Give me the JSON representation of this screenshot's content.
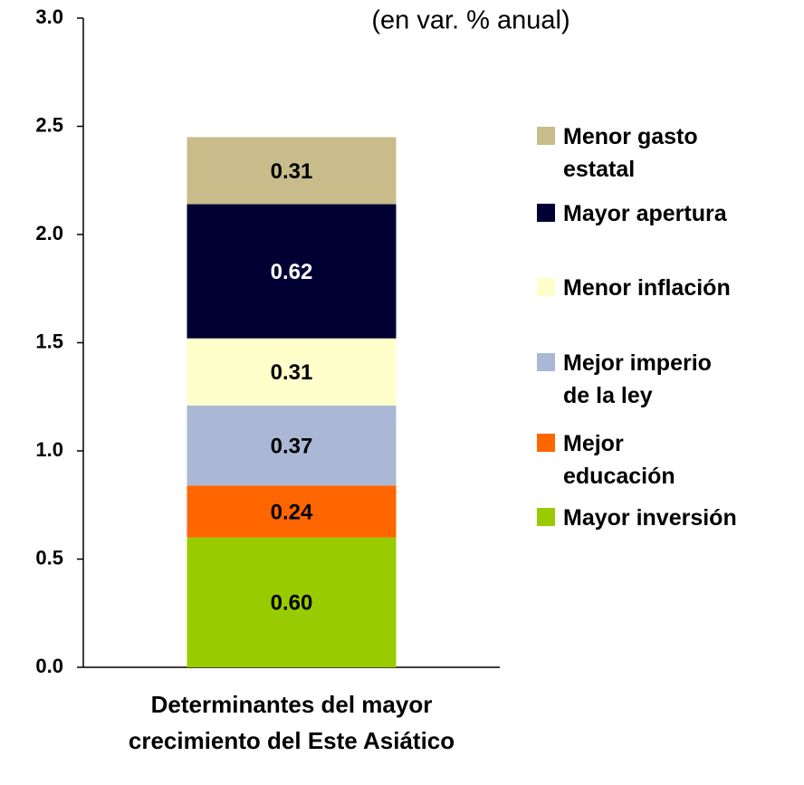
{
  "chart_data": {
    "type": "stacked_bar",
    "title": "(en var. % anual)",
    "categories": [
      "Determinantes del mayor crecimiento del Este Asiático"
    ],
    "series": [
      {
        "name": "Mayor inversión",
        "color": "#99cc00",
        "values": [
          0.6
        ],
        "value_labels": [
          "0.60"
        ]
      },
      {
        "name": "Mejor\neducación",
        "color": "#ff6600",
        "values": [
          0.24
        ]
      },
      {
        "name": "Mejor imperio\nde la ley",
        "color": "#aab8d6",
        "values": [
          0.37
        ]
      },
      {
        "name": "Menor inflación",
        "color": "#ffffcc",
        "values": [
          0.31
        ]
      },
      {
        "name": "Mayor apertura",
        "color": "#000033",
        "values": [
          0.62
        ]
      },
      {
        "name": "Menor gasto\nestatal",
        "color": "#c8bd8a",
        "values": [
          0.31
        ]
      }
    ],
    "ylim": [
      0,
      3
    ],
    "yticks": [
      {
        "value": 0,
        "label": "0.0"
      },
      {
        "value": 0.5,
        "label": "0.5"
      },
      {
        "value": 1,
        "label": "1.0"
      },
      {
        "value": 1.5,
        "label": "1.5"
      },
      {
        "value": 2,
        "label": "2.0"
      },
      {
        "value": 2.5,
        "label": "2.5"
      },
      {
        "value": 3,
        "label": "3.0"
      }
    ],
    "legend": "right"
  }
}
